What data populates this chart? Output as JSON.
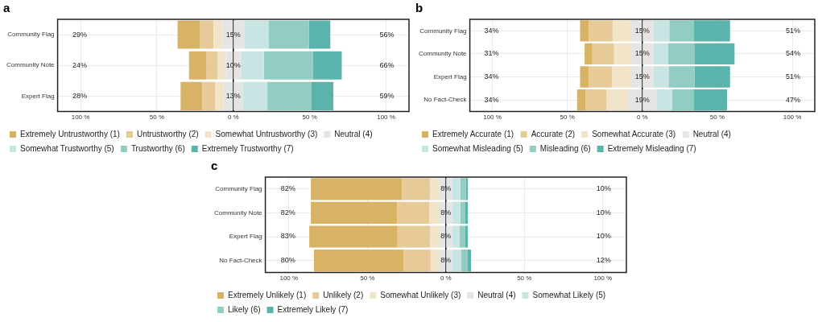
{
  "chart_data": [
    {
      "type": "bar",
      "title": "a",
      "orientation": "horizontal",
      "stacked": true,
      "categories": [
        "Community Flag",
        "Community Note",
        "Expert Flag"
      ],
      "series": [
        {
          "color": "#e5e5e5",
          "values": [
            -7.5,
            -5,
            -6.5
          ]
        },
        {
          "name": "Somewhat Untrustworthy (3)",
          "color": "#f2e4c9",
          "values": [
            -5.5,
            -5.2,
            -5.3
          ]
        },
        {
          "name": "Untrustworthy (2)",
          "color": "#e6cb98",
          "values": [
            -9,
            -7.3,
            -8.5
          ]
        },
        {
          "name": "Extremely Untrustworthy (1)",
          "color": "#d8b365",
          "values": [
            -14.5,
            -11.5,
            -14.2
          ]
        },
        {
          "name": "Neutral (4)",
          "color": "#e5e5e5",
          "values": [
            7.5,
            5,
            6.5
          ]
        },
        {
          "name": "Somewhat Trustworthy (5)",
          "color": "#c8e5e3",
          "values": [
            15.5,
            15,
            15.8
          ]
        },
        {
          "name": "Trustworthy (6)",
          "color": "#92cdc4",
          "values": [
            26.5,
            32,
            28.6
          ]
        },
        {
          "name": "Extremely Trustworthy (7)",
          "color": "#5ab4ac",
          "values": [
            14,
            19,
            14.6
          ]
        }
      ],
      "xlim": [
        -115,
        115
      ],
      "xticks": [
        {
          "value": -100,
          "label": "100 %"
        },
        {
          "value": -50,
          "label": "50 %"
        },
        {
          "value": 0,
          "label": "0 %"
        },
        {
          "value": 50,
          "label": "50 %"
        },
        {
          "value": 100,
          "label": "100 %"
        }
      ],
      "grid": true,
      "legend": "bottom",
      "ref_lines": [
        {
          "axis": "x",
          "value": 0,
          "color": "#000000"
        }
      ],
      "annotations": [
        "29%",
        "15%",
        "56%",
        "24%",
        "10%",
        "66%",
        "28%",
        "13%",
        "59%"
      ]
    },
    {
      "type": "bar",
      "title": "b",
      "orientation": "horizontal",
      "stacked": true,
      "categories": [
        "Community Flag",
        "Community Note",
        "Expert Flag",
        "No Fact-Check"
      ],
      "series": [
        {
          "color": "#e5e5e5",
          "values": [
            -7.5,
            -7.5,
            -7.5,
            -9.5
          ]
        },
        {
          "name": "Somewhat Accurate (3)",
          "color": "#f2e4c9",
          "values": [
            -12.3,
            -11.3,
            -12.8,
            -14.2
          ]
        },
        {
          "name": "Accurate (2)",
          "color": "#e6cb98",
          "values": [
            -16,
            -14.5,
            -15.5,
            -14
          ]
        },
        {
          "name": "Extremely Accurate (1)",
          "color": "#d8b365",
          "values": [
            -5.7,
            -5.2,
            -5.7,
            -5.8
          ]
        },
        {
          "name": "Neutral (4)",
          "color": "#e5e5e5",
          "values": [
            7.5,
            7.5,
            7.5,
            9.5
          ]
        },
        {
          "name": "Somewhat Misleading (5)",
          "color": "#c8e5e3",
          "values": [
            10.5,
            9.8,
            10,
            10.5
          ]
        },
        {
          "name": "Misleading (6)",
          "color": "#92cdc4",
          "values": [
            16.5,
            17.7,
            17.3,
            14.5
          ]
        },
        {
          "name": "Extremely Misleading (7)",
          "color": "#5ab4ac",
          "values": [
            24,
            26.5,
            23.7,
            22
          ]
        }
      ],
      "xlim": [
        -115,
        115
      ],
      "xticks": [
        {
          "value": -100,
          "label": "100 %"
        },
        {
          "value": -50,
          "label": "50 %"
        },
        {
          "value": 0,
          "label": "0 %"
        },
        {
          "value": 50,
          "label": "50 %"
        },
        {
          "value": 100,
          "label": "100 %"
        }
      ],
      "grid": true,
      "legend": "bottom",
      "ref_lines": [
        {
          "axis": "x",
          "value": 0,
          "color": "#000000"
        }
      ],
      "annotations": [
        "34%",
        "15%",
        "51%",
        "31%",
        "15%",
        "54%",
        "34%",
        "15%",
        "51%",
        "34%",
        "19%",
        "47%"
      ]
    },
    {
      "type": "bar",
      "title": "c",
      "orientation": "horizontal",
      "stacked": true,
      "categories": [
        "Community Flag",
        "Community Note",
        "Expert Flag",
        "No Fact-Check"
      ],
      "series": [
        {
          "color": "#e5e5e5",
          "values": [
            -4,
            -4,
            -4,
            -4
          ]
        },
        {
          "name": "Somewhat Unlikely (3)",
          "color": "#f2e4c9",
          "values": [
            -6,
            -6.5,
            -6,
            -5.7
          ]
        },
        {
          "name": "Unlikely (2)",
          "color": "#e6cb98",
          "values": [
            -18,
            -20.5,
            -20.8,
            -17.3
          ]
        },
        {
          "name": "Extremely Unlikely (1)",
          "color": "#d8b365",
          "values": [
            -58,
            -55,
            -56.2,
            -57
          ]
        },
        {
          "name": "Neutral (4)",
          "color": "#e5e5e5",
          "values": [
            4,
            4,
            4,
            4
          ]
        },
        {
          "name": "Somewhat Likely (5)",
          "color": "#c8e5e3",
          "values": [
            5.2,
            5.3,
            4.8,
            5.8
          ]
        },
        {
          "name": "Likely (6)",
          "color": "#92cdc4",
          "values": [
            3.5,
            3.1,
            3.6,
            4.1
          ]
        },
        {
          "name": "Extremely Likely (7)",
          "color": "#5ab4ac",
          "values": [
            1.3,
            1.6,
            1.6,
            2.1
          ]
        }
      ],
      "xlim": [
        -115,
        115
      ],
      "xticks": [
        {
          "value": -100,
          "label": "100 %"
        },
        {
          "value": -50,
          "label": "50 %"
        },
        {
          "value": 0,
          "label": "0 %"
        },
        {
          "value": 50,
          "label": "50 %"
        },
        {
          "value": 100,
          "label": "100 %"
        }
      ],
      "grid": true,
      "legend": "bottom",
      "ref_lines": [
        {
          "axis": "x",
          "value": 0,
          "color": "#000000"
        }
      ],
      "annotations": [
        "82%",
        "8%",
        "10%",
        "82%",
        "8%",
        "10%",
        "83%",
        "8%",
        "10%",
        "80%",
        "8%",
        "12%"
      ]
    }
  ]
}
